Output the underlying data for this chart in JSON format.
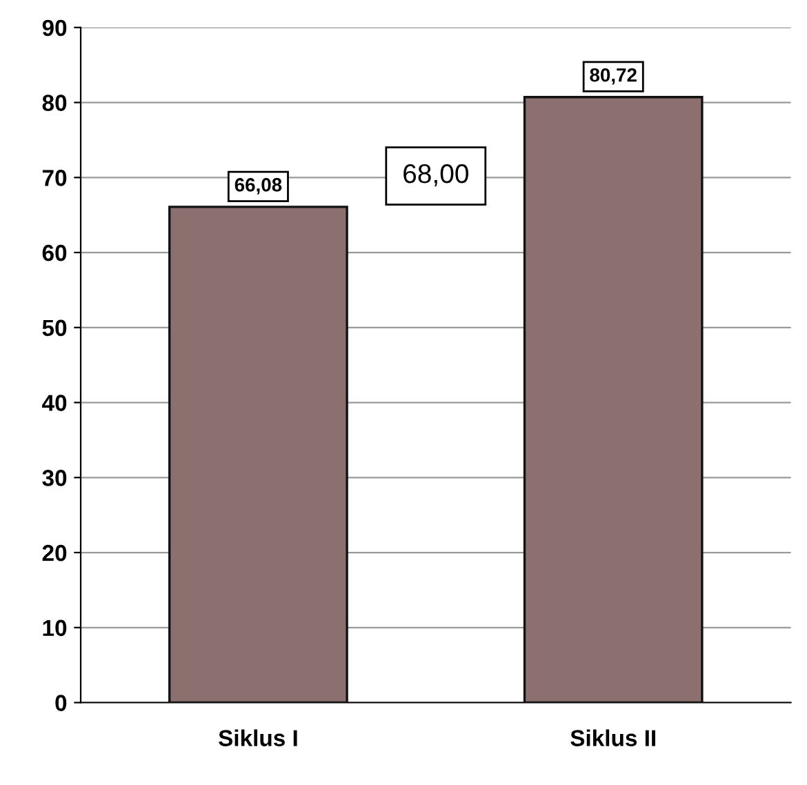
{
  "chart_data": {
    "type": "bar",
    "categories": [
      "Siklus I",
      "Siklus II"
    ],
    "values": [
      66.08,
      80.72
    ],
    "value_labels": [
      "66,08",
      "80,72"
    ],
    "color": "#8c6f6f",
    "ylim": [
      0,
      90
    ],
    "yticks": [
      0,
      10,
      20,
      30,
      40,
      50,
      60,
      70,
      80,
      90
    ],
    "grid": "y",
    "annotations": [
      "68,00"
    ]
  }
}
